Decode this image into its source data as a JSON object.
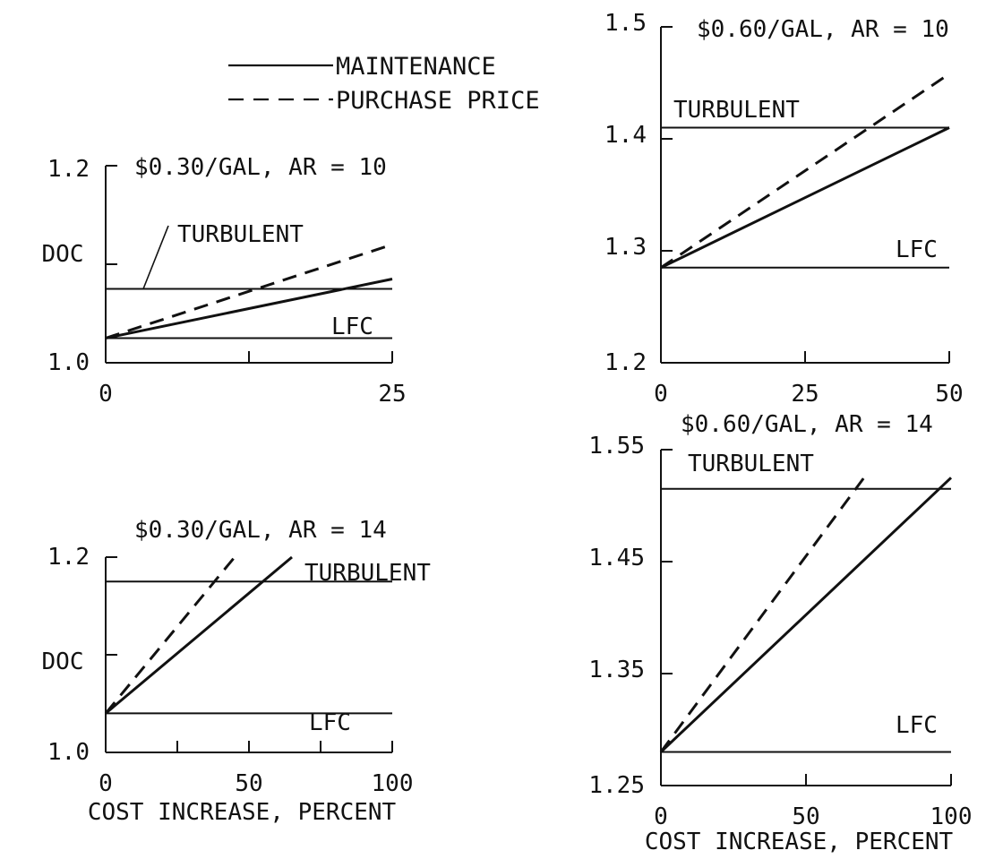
{
  "legend": {
    "entries": [
      {
        "label": "MAINTENANCE",
        "style": "solid"
      },
      {
        "label": "PURCHASE PRICE",
        "style": "dashed"
      }
    ]
  },
  "colors": {
    "ink": "#111111",
    "background": "#ffffff"
  },
  "chart_data": [
    {
      "type": "line",
      "title": "$0.30/GAL, AR = 10",
      "xlabel": "",
      "ylabel": "DOC",
      "xlim": [
        0,
        25
      ],
      "ylim": [
        1.0,
        1.2
      ],
      "xticks": [
        0,
        12.5,
        25
      ],
      "yticks": [
        1.0,
        1.1,
        1.2
      ],
      "xtick_labels": [
        "0",
        "",
        "25"
      ],
      "ytick_labels": [
        "1.0",
        "",
        "1.2"
      ],
      "reference_lines": [
        {
          "label": "TURBULENT",
          "y": 1.075
        },
        {
          "label": "LFC",
          "y": 1.025
        }
      ],
      "series": [
        {
          "name": "MAINTENANCE",
          "style": "solid",
          "x": [
            0,
            25
          ],
          "y": [
            1.025,
            1.085
          ]
        },
        {
          "name": "PURCHASE PRICE",
          "style": "dashed",
          "x": [
            0,
            25
          ],
          "y": [
            1.025,
            1.12
          ]
        }
      ]
    },
    {
      "type": "line",
      "title": "$0.60/GAL, AR = 10",
      "xlabel": "",
      "ylabel": "",
      "xlim": [
        0,
        50
      ],
      "ylim": [
        1.2,
        1.5
      ],
      "xticks": [
        0,
        25,
        50
      ],
      "yticks": [
        1.2,
        1.3,
        1.4,
        1.5
      ],
      "xtick_labels": [
        "0",
        "25",
        "50"
      ],
      "ytick_labels": [
        "1.2",
        "1.3",
        "1.4",
        "1.5"
      ],
      "reference_lines": [
        {
          "label": "TURBULENT",
          "y": 1.41
        },
        {
          "label": "LFC",
          "y": 1.285
        }
      ],
      "series": [
        {
          "name": "MAINTENANCE",
          "style": "solid",
          "x": [
            0,
            50
          ],
          "y": [
            1.285,
            1.41
          ]
        },
        {
          "name": "PURCHASE PRICE",
          "style": "dashed",
          "x": [
            0,
            50
          ],
          "y": [
            1.285,
            1.458
          ]
        }
      ]
    },
    {
      "type": "line",
      "title": "$0.30/GAL, AR = 14",
      "xlabel": "COST INCREASE, PERCENT",
      "ylabel": "DOC",
      "xlim": [
        0,
        100
      ],
      "ylim": [
        1.0,
        1.2
      ],
      "xticks": [
        0,
        25,
        50,
        75,
        100
      ],
      "yticks": [
        1.0,
        1.1,
        1.2
      ],
      "xtick_labels": [
        "0",
        "",
        "50",
        "",
        "100"
      ],
      "ytick_labels": [
        "1.0",
        "",
        "1.2"
      ],
      "reference_lines": [
        {
          "label": "TURBULENT",
          "y": 1.175
        },
        {
          "label": "LFC",
          "y": 1.04
        }
      ],
      "series": [
        {
          "name": "MAINTENANCE",
          "style": "solid",
          "x": [
            0,
            65
          ],
          "y": [
            1.04,
            1.2
          ]
        },
        {
          "name": "PURCHASE PRICE",
          "style": "dashed",
          "x": [
            0,
            45
          ],
          "y": [
            1.04,
            1.2
          ]
        }
      ]
    },
    {
      "type": "line",
      "title": "$0.60/GAL, AR = 14",
      "xlabel": "COST INCREASE, PERCENT",
      "ylabel": "",
      "xlim": [
        0,
        100
      ],
      "ylim": [
        1.25,
        1.55
      ],
      "xticks": [
        0,
        50,
        100
      ],
      "yticks": [
        1.25,
        1.35,
        1.45,
        1.55
      ],
      "xtick_labels": [
        "0",
        "50",
        "100"
      ],
      "ytick_labels": [
        "1.25",
        "1.35",
        "1.45",
        "1.55"
      ],
      "reference_lines": [
        {
          "label": "TURBULENT",
          "y": 1.515
        },
        {
          "label": "LFC",
          "y": 1.28
        }
      ],
      "series": [
        {
          "name": "MAINTENANCE",
          "style": "solid",
          "x": [
            0,
            100
          ],
          "y": [
            1.28,
            1.525
          ]
        },
        {
          "name": "PURCHASE PRICE",
          "style": "dashed",
          "x": [
            0,
            70
          ],
          "y": [
            1.28,
            1.525
          ]
        }
      ]
    }
  ]
}
